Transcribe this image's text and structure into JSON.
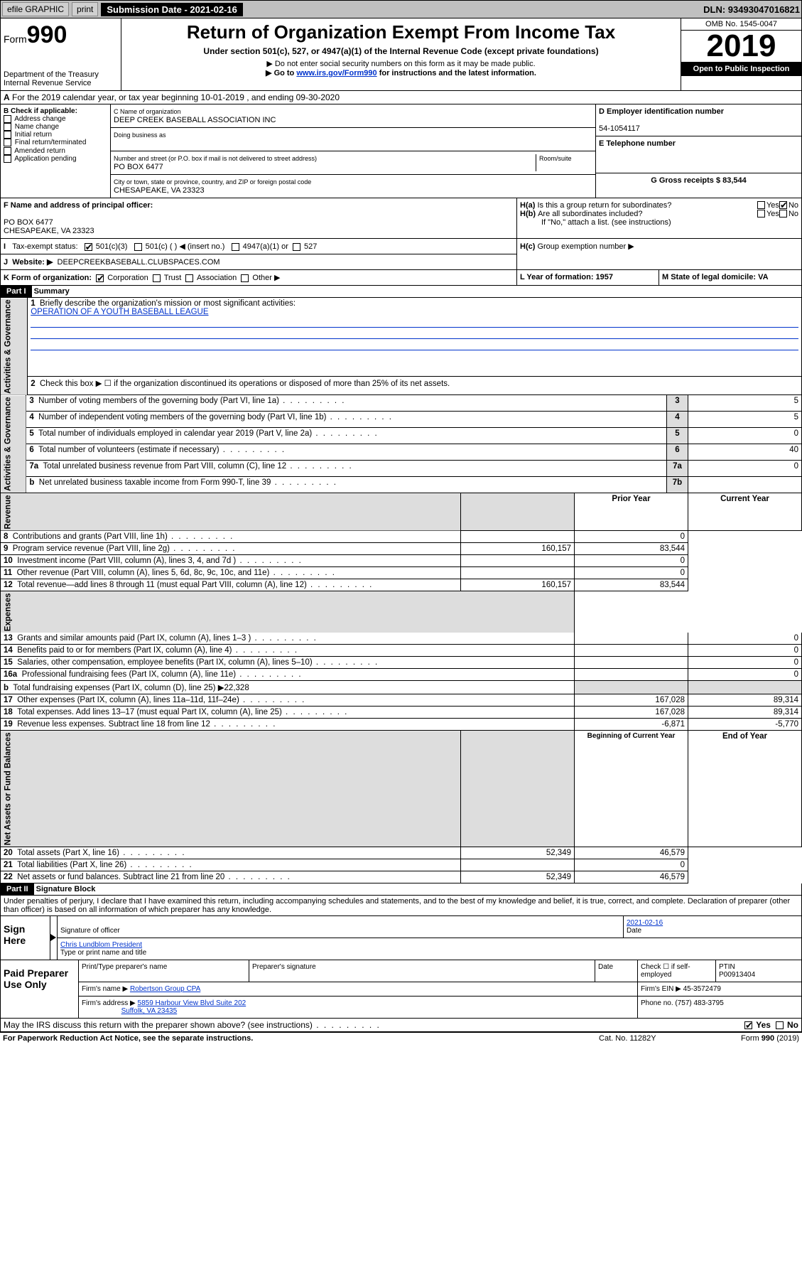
{
  "topbar": {
    "efile": "efile GRAPHIC",
    "print": "print",
    "subdate_label": "Submission Date - 2021-02-16",
    "dln": "DLN: 93493047016821"
  },
  "header_left": {
    "form": "Form",
    "num": "990",
    "dept": "Department of the Treasury",
    "irs": "Internal Revenue Service"
  },
  "header_mid": {
    "title": "Return of Organization Exempt From Income Tax",
    "sub1": "Under section 501(c), 527, or 4947(a)(1) of the Internal Revenue Code (except private foundations)",
    "sub2": "▶ Do not enter social security numbers on this form as it may be made public.",
    "sub3_pre": "▶ Go to ",
    "sub3_link": "www.irs.gov/Form990",
    "sub3_post": " for instructions and the latest information."
  },
  "header_right": {
    "omb": "OMB No. 1545-0047",
    "year": "2019",
    "open": "Open to Public Inspection"
  },
  "lineA": "For the 2019 calendar year, or tax year beginning 10-01-2019   , and ending 09-30-2020",
  "boxB": {
    "title": "B Check if applicable:",
    "items": [
      "Address change",
      "Name change",
      "Initial return",
      "Final return/terminated",
      "Amended return",
      "Application pending"
    ]
  },
  "boxC": {
    "name_lbl": "C Name of organization",
    "name": "DEEP CREEK BASEBALL ASSOCIATION INC",
    "dba": "Doing business as",
    "addr_lbl": "Number and street (or P.O. box if mail is not delivered to street address)",
    "room_lbl": "Room/suite",
    "addr": "PO BOX 6477",
    "city_lbl": "City or town, state or province, country, and ZIP or foreign postal code",
    "city": "CHESAPEAKE, VA  23323"
  },
  "boxD": {
    "lbl": "D Employer identification number",
    "val": "54-1054117"
  },
  "boxE": {
    "lbl": "E Telephone number",
    "val": ""
  },
  "boxG": {
    "lbl": "G Gross receipts $ 83,544"
  },
  "boxF": {
    "lbl": "F  Name and address of principal officer:",
    "l1": "PO BOX 6477",
    "l2": "CHESAPEAKE, VA  23323"
  },
  "boxH": {
    "a": "Is this a group return for subordinates?",
    "b": "Are all subordinates included?",
    "b_note": "If \"No,\" attach a list. (see instructions)",
    "c": "Group exemption number ▶",
    "yes": "Yes",
    "no": "No"
  },
  "boxI": {
    "lbl": "Tax-exempt status:",
    "a": "501(c)(3)",
    "b": "501(c) (  ) ◀ (insert no.)",
    "c": "4947(a)(1) or",
    "d": "527"
  },
  "boxJ": {
    "lbl": "Website: ▶",
    "val": "DEEPCREEKBASEBALL.CLUBSPACES.COM"
  },
  "boxK": {
    "lbl": "K Form of organization:",
    "corp": "Corporation",
    "trust": "Trust",
    "assoc": "Association",
    "other": "Other ▶"
  },
  "boxL": {
    "lbl": "L Year of formation: 1957"
  },
  "boxM": {
    "lbl": "M State of legal domicile: VA"
  },
  "part1": {
    "hdr": "Part I",
    "title": "Summary"
  },
  "summary": {
    "q1": "Briefly describe the organization's mission or most significant activities:",
    "q1v": "OPERATION OF A YOUTH BASEBALL LEAGUE",
    "q2": "Check this box ▶ ☐  if the organization discontinued its operations or disposed of more than 25% of its net assets.",
    "rows_ag": [
      {
        "n": "3",
        "t": "Number of voting members of the governing body (Part VI, line 1a)",
        "c": "3",
        "v": "5"
      },
      {
        "n": "4",
        "t": "Number of independent voting members of the governing body (Part VI, line 1b)",
        "c": "4",
        "v": "5"
      },
      {
        "n": "5",
        "t": "Total number of individuals employed in calendar year 2019 (Part V, line 2a)",
        "c": "5",
        "v": "0"
      },
      {
        "n": "6",
        "t": "Total number of volunteers (estimate if necessary)",
        "c": "6",
        "v": "40"
      },
      {
        "n": "7a",
        "t": "Total unrelated business revenue from Part VIII, column (C), line 12",
        "c": "7a",
        "v": "0"
      },
      {
        "n": "b",
        "t": "Net unrelated business taxable income from Form 990-T, line 39",
        "c": "7b",
        "v": ""
      }
    ],
    "prior": "Prior Year",
    "current": "Current Year",
    "rev": [
      {
        "n": "8",
        "t": "Contributions and grants (Part VIII, line 1h)",
        "p": "",
        "c": "0"
      },
      {
        "n": "9",
        "t": "Program service revenue (Part VIII, line 2g)",
        "p": "160,157",
        "c": "83,544"
      },
      {
        "n": "10",
        "t": "Investment income (Part VIII, column (A), lines 3, 4, and 7d )",
        "p": "",
        "c": "0"
      },
      {
        "n": "11",
        "t": "Other revenue (Part VIII, column (A), lines 5, 6d, 8c, 9c, 10c, and 11e)",
        "p": "",
        "c": "0"
      },
      {
        "n": "12",
        "t": "Total revenue—add lines 8 through 11 (must equal Part VIII, column (A), line 12)",
        "p": "160,157",
        "c": "83,544"
      }
    ],
    "exp": [
      {
        "n": "13",
        "t": "Grants and similar amounts paid (Part IX, column (A), lines 1–3 )",
        "p": "",
        "c": "0"
      },
      {
        "n": "14",
        "t": "Benefits paid to or for members (Part IX, column (A), line 4)",
        "p": "",
        "c": "0"
      },
      {
        "n": "15",
        "t": "Salaries, other compensation, employee benefits (Part IX, column (A), lines 5–10)",
        "p": "",
        "c": "0"
      },
      {
        "n": "16a",
        "t": "Professional fundraising fees (Part IX, column (A), line 11e)",
        "p": "",
        "c": "0"
      },
      {
        "n": "b",
        "t": "Total fundraising expenses (Part IX, column (D), line 25) ▶22,328",
        "p": null,
        "c": null
      },
      {
        "n": "17",
        "t": "Other expenses (Part IX, column (A), lines 11a–11d, 11f–24e)",
        "p": "167,028",
        "c": "89,314"
      },
      {
        "n": "18",
        "t": "Total expenses. Add lines 13–17 (must equal Part IX, column (A), line 25)",
        "p": "167,028",
        "c": "89,314"
      },
      {
        "n": "19",
        "t": "Revenue less expenses. Subtract line 18 from line 12",
        "p": "-6,871",
        "c": "-5,770"
      }
    ],
    "begin": "Beginning of Current Year",
    "end": "End of Year",
    "net": [
      {
        "n": "20",
        "t": "Total assets (Part X, line 16)",
        "p": "52,349",
        "c": "46,579"
      },
      {
        "n": "21",
        "t": "Total liabilities (Part X, line 26)",
        "p": "",
        "c": "0"
      },
      {
        "n": "22",
        "t": "Net assets or fund balances. Subtract line 21 from line 20",
        "p": "52,349",
        "c": "46,579"
      }
    ]
  },
  "vlabels": {
    "ag": "Activities & Governance",
    "rev": "Revenue",
    "exp": "Expenses",
    "net": "Net Assets or Fund Balances"
  },
  "part2": {
    "hdr": "Part II",
    "title": "Signature Block",
    "decl": "Under penalties of perjury, I declare that I have examined this return, including accompanying schedules and statements, and to the best of my knowledge and belief, it is true, correct, and complete. Declaration of preparer (other than officer) is based on all information of which preparer has any knowledge."
  },
  "sign": {
    "here": "Sign Here",
    "sigoff": "Signature of officer",
    "date": "Date",
    "datev": "2021-02-16",
    "name": "Chris Lundblom  President",
    "name_lbl": "Type or print name and title"
  },
  "paid": {
    "hdr": "Paid Preparer Use Only",
    "pname_lbl": "Print/Type preparer's name",
    "psig_lbl": "Preparer's signature",
    "date_lbl": "Date",
    "check_lbl": "Check ☐ if self-employed",
    "ptin_lbl": "PTIN",
    "ptin": "P00913404",
    "firm_lbl": "Firm's name   ▶",
    "firm": "Robertson Group CPA",
    "ein_lbl": "Firm's EIN ▶ 45-3572479",
    "addr_lbl": "Firm's address ▶",
    "addr1": "5859 Harbour View Blvd Suite 202",
    "addr2": "Suffolk, VA  23435",
    "phone_lbl": "Phone no. (757) 483-3795"
  },
  "discuss": "May the IRS discuss this return with the preparer shown above? (see instructions)",
  "footer": {
    "l": "For Paperwork Reduction Act Notice, see the separate instructions.",
    "m": "Cat. No. 11282Y",
    "r": "Form 990 (2019)"
  }
}
